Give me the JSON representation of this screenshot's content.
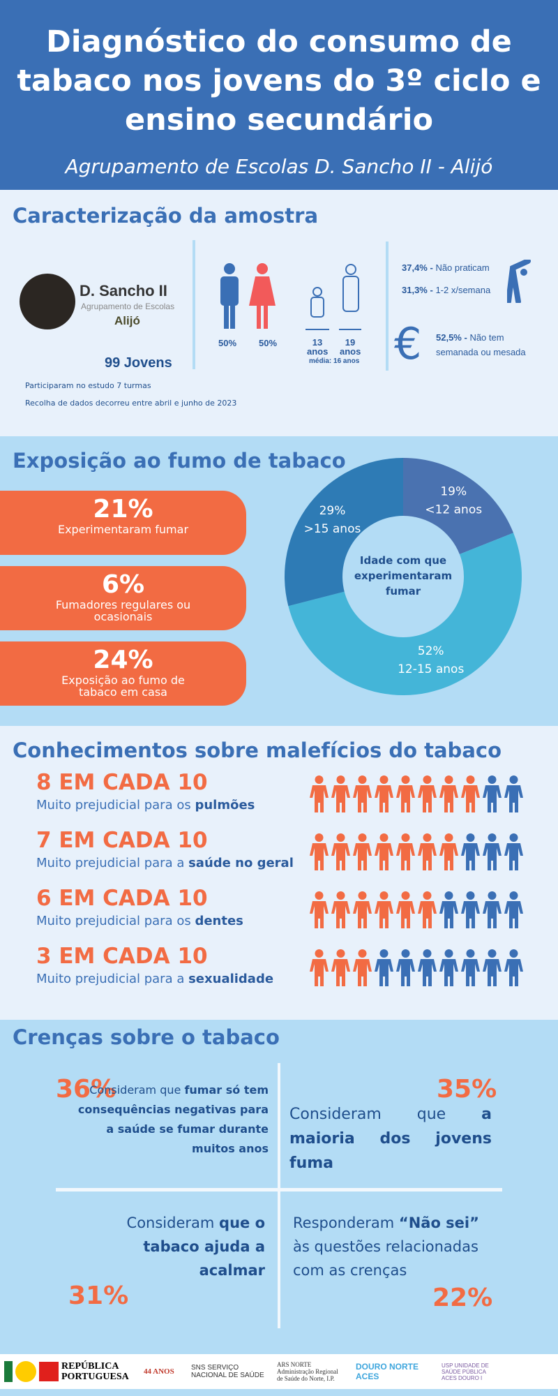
{
  "header": {
    "title": "Diagnóstico do consumo de tabaco nos jovens do 3º ciclo e ensino secundário",
    "subtitle": "Agrupamento de Escolas D. Sancho II - Alijó"
  },
  "sample": {
    "title": "Caracterização da amostra",
    "school_name": "D. Sancho II",
    "school_group": "Agrupamento de Escolas",
    "school_town": "Alijó",
    "total": "99 Jovens",
    "male_pct": "50%",
    "female_pct": "50%",
    "age_min": "13",
    "age_max": "19",
    "age_unit": "anos",
    "age_mean": "média: 16 anos",
    "sport": [
      {
        "pct": "37,4% -",
        "label": "Não praticam"
      },
      {
        "pct": "31,3% -",
        "label": "1-2 x/semana"
      }
    ],
    "money": {
      "pct": "52,5% -",
      "label": "Não tem semanada ou mesada"
    },
    "note1": "Participaram no estudo 7 turmas",
    "note2": "Recolha de dados decorreu entre abril e junho de 2023"
  },
  "exposure": {
    "title": "Exposição ao fumo de tabaco",
    "pills": [
      {
        "value": "21%",
        "label": "Experimentaram fumar"
      },
      {
        "value": "6%",
        "label": "Fumadores regulares ou ocasionais"
      },
      {
        "value": "24%",
        "label": "Exposição ao fumo de tabaco em casa"
      }
    ]
  },
  "chart_data": {
    "type": "pie",
    "variant": "donut",
    "title": "Idade com que experimentaram fumar",
    "categories": [
      "<12 anos",
      "12-15 anos",
      ">15 anos"
    ],
    "values": [
      19,
      52,
      29
    ],
    "labels": [
      "19%",
      "52%",
      "29%"
    ],
    "colors": [
      "#4a72b0",
      "#44b5d8",
      "#2e7bb5"
    ]
  },
  "knowledge": {
    "title": "Conhecimentos sobre malefícios do tabaco",
    "prefix": "Muito prejudicial para",
    "rows": [
      {
        "headline": "8 EM CADA 10",
        "pre": "Muito prejudicial para os ",
        "em": "pulmões",
        "count": 8
      },
      {
        "headline": "7 EM CADA 10",
        "pre": "Muito prejudicial para a ",
        "em": "saúde no geral",
        "count": 7
      },
      {
        "headline": "6 EM CADA 10",
        "pre": "Muito prejudicial para os ",
        "em": "dentes",
        "count": 6
      },
      {
        "headline": "3 EM CADA 10",
        "pre": "Muito prejudicial para a ",
        "em": "sexualidade",
        "count": 3
      }
    ],
    "colors": {
      "yes": "#f26b43",
      "no": "#3a6fb5"
    }
  },
  "beliefs": {
    "title": "Crenças sobre o tabaco",
    "items": [
      {
        "pct": "36%",
        "pre": "Consideram que ",
        "em": "fumar só tem consequências negativas para a saúde se fumar durante muitos anos",
        "post": ""
      },
      {
        "pct": "35%",
        "pre": "Consideram que ",
        "em": "a maioria dos jovens fuma",
        "post": ""
      },
      {
        "pct": "31%",
        "pre": "Consideram ",
        "em": "que o tabaco ajuda a acalmar",
        "post": ""
      },
      {
        "pct": "22%",
        "pre": "Responderam ",
        "em": "“Não sei”",
        "post": " às questões relacionadas com as crenças"
      }
    ]
  },
  "footer": {
    "logos": [
      "REPÚBLICA PORTUGUESA",
      "44 ANOS",
      "SNS SERVIÇO NACIONAL DE SAÚDE",
      "ARS NORTE Administração Regional de Saúde do Norte, I.P.",
      "DOURO NORTE ACES",
      "USP UNIDADE DE SAÚDE PÚBLICA ACES DOURO I"
    ]
  }
}
